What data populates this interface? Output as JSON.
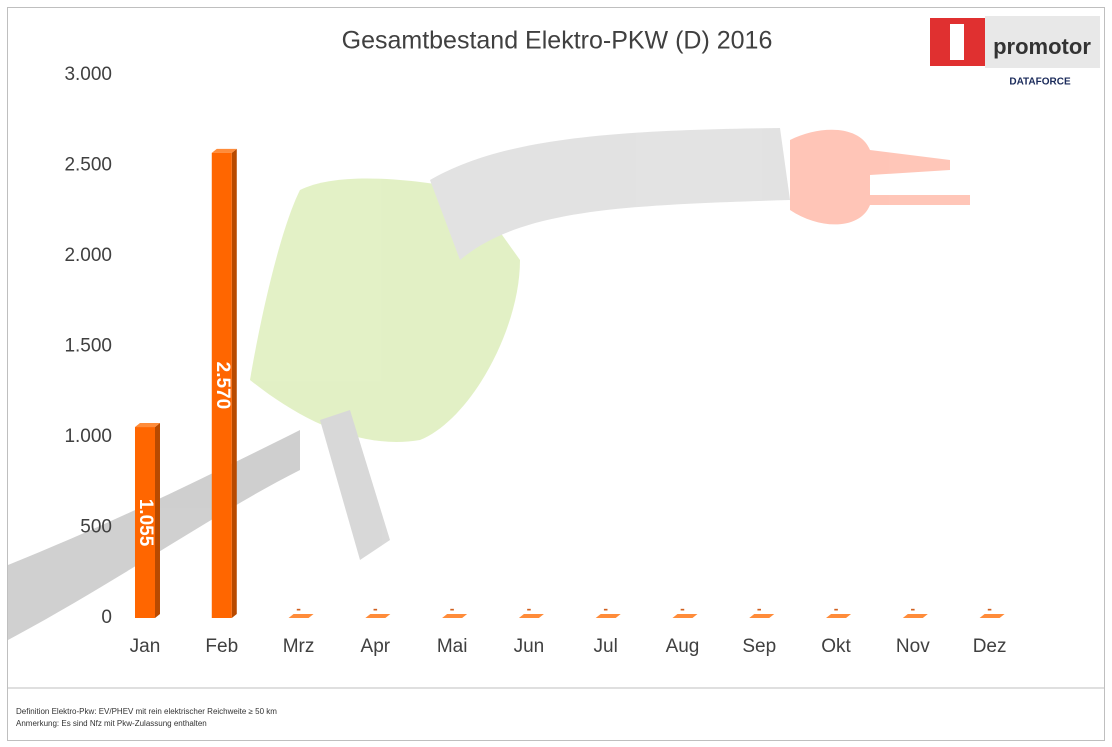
{
  "chart_data": {
    "type": "bar",
    "title": "Gesamtbestand Elektro-PKW (D) 2016",
    "categories": [
      "Jan",
      "Feb",
      "Mrz",
      "Apr",
      "Mai",
      "Jun",
      "Jul",
      "Aug",
      "Sep",
      "Okt",
      "Nov",
      "Dez"
    ],
    "values": [
      1055,
      2570,
      0,
      0,
      0,
      0,
      0,
      0,
      0,
      0,
      0,
      0
    ],
    "value_labels": [
      "1.055",
      "2.570",
      "-",
      "-",
      "-",
      "-",
      "-",
      "-",
      "-",
      "-",
      "-",
      "-"
    ],
    "color": "#ff6600",
    "ylim": [
      0,
      3000
    ],
    "yticks": [
      0,
      500,
      {
        "value": 1000,
        "label": "1.000"
      },
      {
        "value": 1500,
        "label": "1.500"
      },
      {
        "value": 2000,
        "label": "2.000"
      },
      {
        "value": 2500,
        "label": "2.500"
      },
      {
        "value": 3000,
        "label": "3.000"
      }
    ],
    "grid": false
  },
  "logo": {
    "name": "promotor",
    "sub": "DATAFORCE"
  },
  "footnotes": [
    "Definition Elektro-Pkw: EV/PHEV mit rein elektrischer Reichweite ≥ 50 km",
    "Anmerkung: Es sind Nfz mit Pkw-Zulassung enthalten"
  ]
}
